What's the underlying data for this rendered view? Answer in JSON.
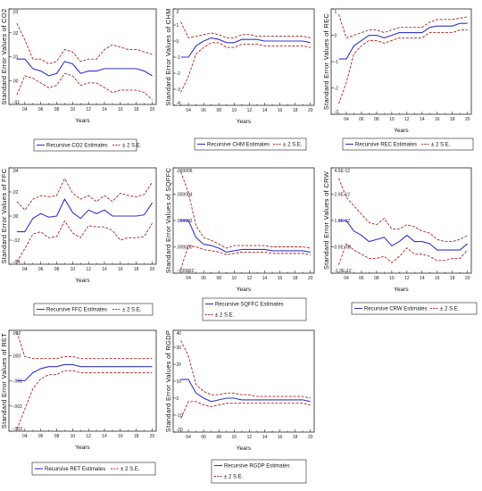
{
  "figure_title": "",
  "colors": {
    "estimate": "#3333cc",
    "band": "#b22222"
  },
  "chart_data": [
    {
      "type": "line",
      "ylabel": "Standard Error Values of CO2",
      "xlabel": "Years",
      "x": [
        3,
        4,
        5,
        6,
        7,
        8,
        9,
        10,
        11,
        12,
        13,
        14,
        15,
        16,
        17,
        18,
        19,
        20
      ],
      "x_tick_labels": [
        "04",
        "06",
        "08",
        "10",
        "12",
        "14",
        "16",
        "18",
        "20"
      ],
      "y_tick_labels": [
        ".03",
        ".02",
        ".01",
        ".00",
        "-.01"
      ],
      "ylim": [
        -0.01,
        0.03
      ],
      "series": [
        {
          "name": "Recursive CO2 Estimates",
          "style": "solid",
          "values": [
            0.009,
            0.009,
            0.005,
            0.004,
            0.002,
            0.003,
            0.008,
            0.007,
            0.003,
            0.004,
            0.004,
            0.005,
            0.005,
            0.005,
            0.005,
            0.005,
            0.004,
            0.002
          ]
        },
        {
          "name": "± 2 S.E.",
          "style": "dashed",
          "values": [
            0.024,
            0.017,
            0.009,
            0.009,
            0.007,
            0.008,
            0.013,
            0.012,
            0.008,
            0.009,
            0.009,
            0.013,
            0.015,
            0.014,
            0.013,
            0.013,
            0.012,
            0.011
          ]
        },
        {
          "style": "dashed",
          "values": [
            -0.006,
            0.002,
            0.001,
            -0.001,
            -0.003,
            -0.002,
            0.003,
            0.002,
            -0.002,
            -0.001,
            -0.001,
            -0.003,
            -0.005,
            -0.004,
            -0.004,
            -0.004,
            -0.005,
            -0.008
          ]
        }
      ]
    },
    {
      "type": "line",
      "ylabel": "Standard Error Values of CHM",
      "xlabel": "Years",
      "x": [
        3,
        4,
        5,
        6,
        7,
        8,
        9,
        10,
        11,
        12,
        13,
        14,
        15,
        16,
        17,
        18,
        19,
        20
      ],
      "x_tick_labels": [
        "04",
        "06",
        "08",
        "10",
        "12",
        "14",
        "16",
        "18",
        "20"
      ],
      "y_tick_labels": [
        "2",
        "1",
        "0",
        "-1",
        "-2",
        "-3",
        "-4"
      ],
      "ylim": [
        -4,
        2
      ],
      "series": [
        {
          "name": "Recursive CHM Estimates",
          "style": "solid",
          "values": [
            -1.0,
            -1.0,
            -0.3,
            0.0,
            0.2,
            0.1,
            -0.1,
            -0.1,
            0.1,
            0.1,
            0.1,
            0.0,
            0.0,
            0.0,
            0.0,
            0.0,
            0.0,
            -0.1
          ]
        },
        {
          "name": "± 2 S.E.",
          "style": "dashed",
          "values": [
            1.2,
            0.2,
            0.3,
            0.4,
            0.5,
            0.4,
            0.2,
            0.2,
            0.4,
            0.4,
            0.3,
            0.3,
            0.3,
            0.3,
            0.3,
            0.3,
            0.3,
            0.2
          ]
        },
        {
          "style": "dashed",
          "values": [
            -3.2,
            -2.2,
            -0.8,
            -0.4,
            -0.1,
            -0.1,
            -0.4,
            -0.4,
            -0.2,
            -0.2,
            -0.2,
            -0.3,
            -0.3,
            -0.3,
            -0.3,
            -0.3,
            -0.3,
            -0.4
          ]
        }
      ]
    },
    {
      "type": "line",
      "ylabel": "Standard Error Values of REC",
      "xlabel": "Years",
      "x": [
        3,
        4,
        5,
        6,
        7,
        8,
        9,
        10,
        11,
        12,
        13,
        14,
        15,
        16,
        17,
        18,
        19,
        20
      ],
      "x_tick_labels": [
        "04",
        "06",
        "08",
        "10",
        "12",
        "14",
        "16",
        "18",
        "20"
      ],
      "y_tick_labels": [
        "1",
        "0",
        "-1",
        "-2",
        "-3"
      ],
      "ylim": [
        -3,
        1
      ],
      "series": [
        {
          "name": "Recursive REC Estimates",
          "style": "solid",
          "values": [
            -0.9,
            -0.9,
            -0.4,
            -0.2,
            0.0,
            0.0,
            -0.1,
            0.0,
            0.1,
            0.1,
            0.1,
            0.1,
            0.3,
            0.35,
            0.35,
            0.35,
            0.45,
            0.45
          ]
        },
        {
          "name": "± 2 S.E.",
          "style": "dashed",
          "values": [
            0.8,
            -0.1,
            0.0,
            0.1,
            0.2,
            0.2,
            0.1,
            0.2,
            0.3,
            0.3,
            0.3,
            0.3,
            0.5,
            0.6,
            0.6,
            0.6,
            0.65,
            0.7
          ]
        },
        {
          "style": "dashed",
          "values": [
            -2.6,
            -1.8,
            -0.7,
            -0.4,
            -0.2,
            -0.2,
            -0.3,
            -0.2,
            -0.1,
            -0.1,
            -0.1,
            -0.1,
            0.1,
            0.1,
            0.1,
            0.1,
            0.2,
            0.2
          ]
        }
      ]
    },
    {
      "type": "line",
      "ylabel": "Standard Error Values of FFC",
      "xlabel": "Years",
      "x": [
        3,
        4,
        5,
        6,
        7,
        8,
        9,
        10,
        11,
        12,
        13,
        14,
        15,
        16,
        17,
        18,
        19,
        20
      ],
      "x_tick_labels": [
        "04",
        "06",
        "08",
        "10",
        "12",
        "14",
        "16",
        "18",
        "20"
      ],
      "y_tick_labels": [
        ".04",
        ".02",
        ".00",
        "-.02",
        "-.04"
      ],
      "ylim": [
        -0.04,
        0.04
      ],
      "series": [
        {
          "name": "Recursive FFC Estimates",
          "style": "solid",
          "values": [
            -0.013,
            -0.013,
            -0.002,
            0.002,
            -0.001,
            0.0,
            0.014,
            0.003,
            -0.002,
            0.005,
            0.002,
            0.005,
            0.0,
            0.0,
            0.0,
            0.0,
            0.001,
            0.011
          ]
        },
        {
          "name": "± 2 S.E.",
          "style": "dashed",
          "values": [
            0.012,
            0.005,
            0.014,
            0.017,
            0.016,
            0.017,
            0.031,
            0.019,
            0.014,
            0.017,
            0.012,
            0.017,
            0.012,
            0.019,
            0.017,
            0.016,
            0.018,
            0.028
          ]
        },
        {
          "style": "dashed",
          "values": [
            -0.038,
            -0.027,
            -0.015,
            -0.013,
            -0.018,
            -0.017,
            -0.004,
            -0.014,
            -0.018,
            -0.008,
            -0.009,
            -0.009,
            -0.012,
            -0.02,
            -0.018,
            -0.018,
            -0.017,
            -0.006
          ]
        }
      ]
    },
    {
      "type": "line",
      "ylabel": "Standard Error Values of SQFFC",
      "xlabel": "Years",
      "x": [
        3,
        4,
        5,
        6,
        7,
        8,
        9,
        10,
        11,
        12,
        13,
        14,
        15,
        16,
        17,
        18,
        19,
        20
      ],
      "x_tick_labels": [
        "04",
        "06",
        "08",
        "10",
        "12",
        "14",
        "16",
        "18",
        "20"
      ],
      "y_tick_labels": [
        ".000006",
        ".000004",
        ".000002",
        ".000000",
        "-.000002"
      ],
      "ylim": [
        -2e-06,
        6e-06
      ],
      "series": [
        {
          "name": "Recursive SQFFC Estimates",
          "style": "solid",
          "values": [
            2e-06,
            2e-06,
            7e-07,
            2e-07,
            1e-07,
            -1e-07,
            -4e-07,
            -3e-07,
            -2e-07,
            -2e-07,
            -2e-07,
            -2e-07,
            -3e-07,
            -3e-07,
            -3e-07,
            -3e-07,
            -3e-07,
            -4e-07
          ]
        },
        {
          "name": "± 2 S.E.",
          "style": "dashed",
          "values": [
            5.7e-06,
            4.1e-06,
            1.6e-06,
            7e-07,
            5e-07,
            2e-07,
            -1e-07,
            1e-07,
            1e-07,
            1e-07,
            1e-07,
            1e-07,
            0.0,
            0.0,
            0.0,
            0.0,
            0.0,
            -1e-07
          ]
        },
        {
          "style": "dashed",
          "values": [
            -1.7e-06,
            1e-07,
            0.0,
            -2e-07,
            -3e-07,
            -4e-07,
            -6e-07,
            -5e-07,
            -4e-07,
            -4e-07,
            -4e-07,
            -4e-07,
            -5e-07,
            -5e-07,
            -5e-07,
            -5e-07,
            -5e-07,
            -6e-07
          ]
        }
      ]
    },
    {
      "type": "line",
      "ylabel": "Standard Error Values of CRW",
      "xlabel": "Years",
      "x": [
        3,
        4,
        5,
        6,
        7,
        8,
        9,
        10,
        11,
        12,
        13,
        14,
        15,
        16,
        17,
        18,
        19,
        20
      ],
      "x_tick_labels": [
        "04",
        "06",
        "08",
        "10",
        "12",
        "14",
        "16",
        "18",
        "20"
      ],
      "y_tick_labels": [
        "4.0E-12",
        "2.0E-12",
        "1.0E-12",
        "0.0E+00",
        "-1.0E-12"
      ],
      "ylim": [
        -1e-12,
        4e-12
      ],
      "series": [
        {
          "name": "Recursive CRW Estimates",
          "style": "solid",
          "values": [
            1.5e-12,
            1.5e-12,
            1e-12,
            8e-13,
            5e-13,
            6e-13,
            7e-13,
            3e-13,
            5e-13,
            8e-13,
            5e-13,
            5e-13,
            4e-13,
            1e-13,
            1e-13,
            1e-13,
            1e-13,
            4e-13
          ]
        },
        {
          "name": "± 2 S.E.",
          "style": "dashed",
          "values": [
            3.5e-12,
            2.6e-12,
            2.2e-12,
            1.8e-12,
            1.4e-12,
            1.3e-12,
            1.6e-12,
            1.1e-12,
            1.1e-12,
            1.3e-12,
            1.2e-12,
            1e-12,
            9e-13,
            6e-13,
            5e-13,
            5e-13,
            6e-13,
            8e-13
          ]
        },
        {
          "style": "dashed",
          "values": [
            -6e-13,
            4e-13,
            1e-13,
            -1e-13,
            -3e-13,
            -3e-13,
            -2e-13,
            -5e-13,
            -2e-13,
            2e-13,
            -1e-13,
            -1e-13,
            -2e-13,
            -4e-13,
            -4e-13,
            -3e-13,
            -3e-13,
            1e-13
          ]
        }
      ]
    },
    {
      "type": "line",
      "ylabel": "Standard Error Values of RET",
      "xlabel": "Years",
      "x": [
        3,
        4,
        5,
        6,
        7,
        8,
        9,
        10,
        11,
        12,
        13,
        14,
        15,
        16,
        17,
        18,
        19,
        20
      ],
      "x_tick_labels": [
        "04",
        "06",
        "08",
        "10",
        "12",
        "14",
        "16",
        "18",
        "20"
      ],
      "y_tick_labels": [
        ".002",
        ".000",
        "-.001",
        "-.002",
        "-.003"
      ],
      "ylim": [
        -0.003,
        0.002
      ],
      "series": [
        {
          "name": "Recursive RET Estimates",
          "style": "solid",
          "values": [
            -0.0005,
            -0.0005,
            -0.0001,
            0.0001,
            0.0002,
            0.0002,
            0.0003,
            0.0003,
            0.0002,
            0.0002,
            0.0002,
            0.0002,
            0.0002,
            0.0002,
            0.0002,
            0.0002,
            0.0002,
            0.0002
          ]
        },
        {
          "name": "± 2 S.E.",
          "style": "dashed",
          "values": [
            0.0019,
            0.0007,
            0.0006,
            0.0006,
            0.0006,
            0.0006,
            0.0007,
            0.0007,
            0.0006,
            0.0006,
            0.0006,
            0.0006,
            0.0006,
            0.0006,
            0.0006,
            0.0006,
            0.0006,
            0.0006
          ]
        },
        {
          "style": "dashed",
          "values": [
            -0.0029,
            -0.0019,
            -0.0009,
            -0.0004,
            -0.0002,
            -0.0002,
            0.0,
            0.0,
            -0.0001,
            -0.0001,
            -0.0001,
            -0.0001,
            -0.0001,
            -0.0001,
            -0.0001,
            -0.0001,
            -0.0001,
            -0.0001
          ]
        }
      ]
    },
    {
      "type": "line",
      "ylabel": "Standard Error Values of RGDP",
      "xlabel": "Years",
      "x": [
        3,
        4,
        5,
        6,
        7,
        8,
        9,
        10,
        11,
        12,
        13,
        14,
        15,
        16,
        17,
        18,
        19,
        20
      ],
      "x_tick_labels": [
        "04",
        "06",
        "08",
        "10",
        "12",
        "14",
        "16",
        "18",
        "20"
      ],
      "y_tick_labels": [
        "40",
        "30",
        "20",
        "10",
        "0",
        "-10",
        "-20"
      ],
      "ylim": [
        -20,
        40
      ],
      "series": [
        {
          "name": "Recursive RGDP Estimates",
          "style": "solid",
          "values": [
            11,
            11,
            3,
            0,
            -2,
            -1,
            0,
            0,
            -1,
            -1,
            -1,
            -1,
            -1,
            -1,
            -1,
            -1,
            -1,
            -2
          ]
        },
        {
          "name": "± 2 S.E.",
          "style": "dashed",
          "values": [
            34,
            25,
            8,
            4,
            2,
            2,
            3,
            3,
            2,
            2,
            1,
            1,
            1,
            1,
            1,
            1,
            1,
            0
          ]
        },
        {
          "style": "dashed",
          "values": [
            -12,
            -2,
            -2,
            -4,
            -5,
            -4,
            -3,
            -3,
            -3,
            -3,
            -3,
            -3,
            -3,
            -3,
            -3,
            -3,
            -3,
            -4
          ]
        }
      ]
    }
  ]
}
